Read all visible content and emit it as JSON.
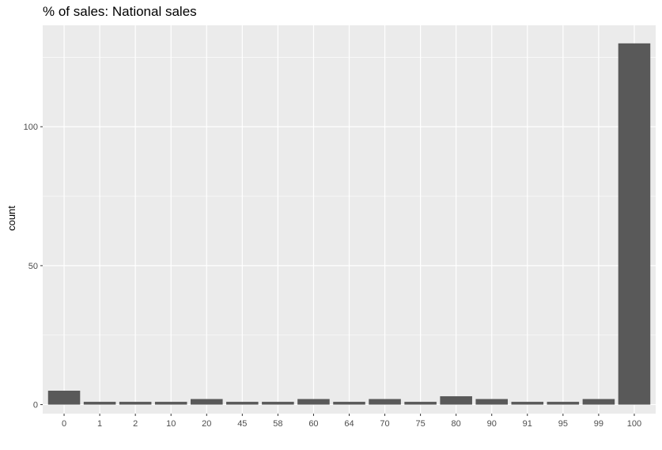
{
  "chart_data": {
    "type": "bar",
    "title": "% of sales: National sales",
    "xlabel": "",
    "ylabel": "count",
    "categories": [
      "0",
      "1",
      "2",
      "10",
      "20",
      "45",
      "58",
      "60",
      "64",
      "70",
      "75",
      "80",
      "90",
      "91",
      "95",
      "99",
      "100"
    ],
    "values": [
      5,
      1,
      1,
      1,
      2,
      1,
      1,
      2,
      1,
      2,
      1,
      3,
      2,
      1,
      1,
      2,
      130
    ],
    "ylim": [
      -3.25,
      136.5
    ],
    "yticks": [
      0,
      50,
      100
    ],
    "grid": true,
    "colors": {
      "panel": "#ebebeb",
      "gridMajor": "#ffffff",
      "bar": "#595959",
      "tick": "#333333"
    }
  }
}
